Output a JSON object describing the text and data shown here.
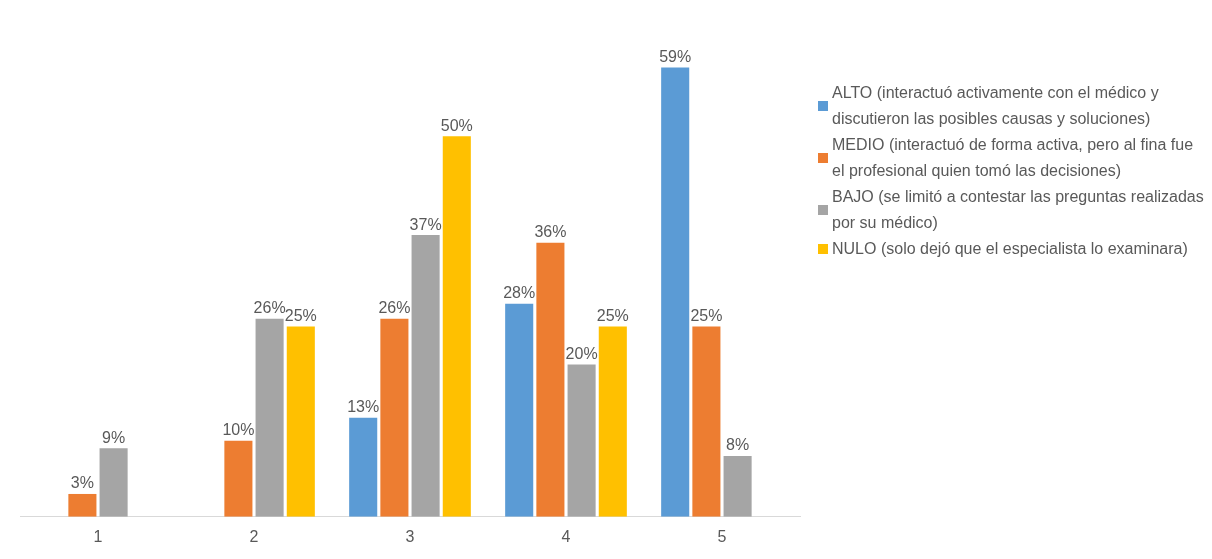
{
  "chart_data": {
    "type": "bar",
    "categories": [
      "1",
      "2",
      "3",
      "4",
      "5"
    ],
    "series": [
      {
        "name": "ALTO (interactuó activamente con el médico y discutieron las posibles causas y soluciones)",
        "color": "#5b9bd5",
        "values": [
          null,
          null,
          13,
          28,
          59
        ],
        "value_labels": [
          null,
          null,
          "13%",
          "28%",
          "59%"
        ]
      },
      {
        "name": "MEDIO (interactuó de forma activa, pero al fina fue el profesional quien tomó las decisiones)",
        "color": "#ed7d31",
        "values": [
          3,
          10,
          26,
          36,
          25
        ],
        "value_labels": [
          "3%",
          "10%",
          "26%",
          "36%",
          "25%"
        ]
      },
      {
        "name": "BAJO (se limitó a contestar las preguntas realizadas por su médico)",
        "color": "#a5a5a5",
        "values": [
          9,
          26,
          37,
          20,
          8
        ],
        "value_labels": [
          "9%",
          "26%",
          "37%",
          "20%",
          "8%"
        ]
      },
      {
        "name": "NULO (solo dejó que el especialista lo examinara)",
        "color": "#ffc000",
        "values": [
          null,
          25,
          50,
          25,
          null
        ],
        "value_labels": [
          null,
          "25%",
          "50%",
          "25%",
          null
        ]
      }
    ],
    "legend": "right",
    "grid": false
  }
}
